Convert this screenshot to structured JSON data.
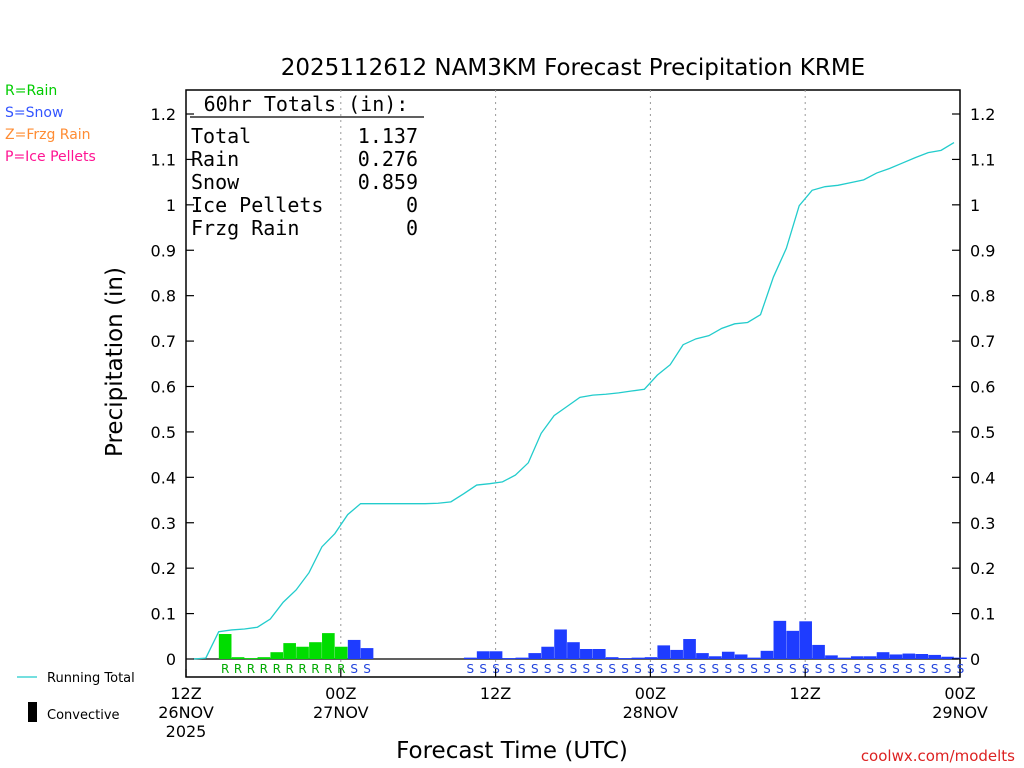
{
  "chart_data": {
    "type": "bar",
    "title": "2025112612 NAM3KM Forecast Precipitation KRME",
    "ylabel": "Precipitation (in)",
    "xlabel": "Forecast Time (UTC)",
    "ylim": [
      -0.04,
      1.24
    ],
    "yticks": [
      "0",
      "0.1",
      "0.2",
      "0.3",
      "0.4",
      "0.5",
      "0.6",
      "0.7",
      "0.8",
      "0.9",
      "1",
      "1.1",
      "1.2"
    ],
    "ytick_values": [
      0,
      0.1,
      0.2,
      0.3,
      0.4,
      0.5,
      0.6,
      0.7,
      0.8,
      0.9,
      1.0,
      1.1,
      1.2
    ],
    "x_ticks": [
      {
        "hour": 0,
        "lines": [
          "12Z",
          "26NOV",
          "2025"
        ]
      },
      {
        "hour": 12,
        "lines": [
          "00Z",
          "27NOV"
        ]
      },
      {
        "hour": 24,
        "lines": [
          "12Z"
        ]
      },
      {
        "hour": 36,
        "lines": [
          "00Z",
          "28NOV"
        ]
      },
      {
        "hour": 48,
        "lines": [
          "12Z"
        ]
      },
      {
        "hour": 60,
        "lines": [
          "00Z",
          "29NOV"
        ]
      }
    ],
    "hour_range": [
      0,
      60
    ],
    "precip_type_legend": [
      {
        "label": "R=Rain",
        "color": "#00cc00"
      },
      {
        "label": "S=Snow",
        "color": "#3355ff"
      },
      {
        "label": "Z=Frzg Rain",
        "color": "#ff8c33"
      },
      {
        "label": "P=Ice Pellets",
        "color": "#ff1493"
      }
    ],
    "totals_box": {
      "header": "60hr Totals (in):",
      "rows": [
        {
          "label": "Total",
          "value": "1.137"
        },
        {
          "label": "Rain",
          "value": "0.276"
        },
        {
          "label": "Snow",
          "value": "0.859"
        },
        {
          "label": "Ice Pellets",
          "value": "0"
        },
        {
          "label": "Frzg Rain",
          "value": "0"
        }
      ]
    },
    "running_total_label": "Running Total",
    "convective_label": "Convective",
    "credit": "coolwx.com/modelts",
    "bar_colors": {
      "R": "#00dd00",
      "S": "#1e3cff",
      "Z": "#ff8c33",
      "P": "#ff1493"
    },
    "label_colors": {
      "R": "#00aa00",
      "S": "#2244dd"
    },
    "line_color": "#22cccc",
    "bars": [
      {
        "hour": 0,
        "value": 0.0,
        "type": ""
      },
      {
        "hour": 1,
        "value": 0.0,
        "type": ""
      },
      {
        "hour": 2,
        "value": 0.002,
        "type": ""
      },
      {
        "hour": 3,
        "value": 0.055,
        "type": "R"
      },
      {
        "hour": 4,
        "value": 0.004,
        "type": "R"
      },
      {
        "hour": 5,
        "value": 0.002,
        "type": "R"
      },
      {
        "hour": 6,
        "value": 0.004,
        "type": "R"
      },
      {
        "hour": 7,
        "value": 0.015,
        "type": "R"
      },
      {
        "hour": 8,
        "value": 0.035,
        "type": "R"
      },
      {
        "hour": 9,
        "value": 0.027,
        "type": "R"
      },
      {
        "hour": 10,
        "value": 0.037,
        "type": "R"
      },
      {
        "hour": 11,
        "value": 0.057,
        "type": "R"
      },
      {
        "hour": 12,
        "value": 0.027,
        "type": "R"
      },
      {
        "hour": 13,
        "value": 0.042,
        "type": "S"
      },
      {
        "hour": 14,
        "value": 0.024,
        "type": "S"
      },
      {
        "hour": 15,
        "value": 0.0,
        "type": ""
      },
      {
        "hour": 16,
        "value": 0.0,
        "type": ""
      },
      {
        "hour": 17,
        "value": 0.0,
        "type": ""
      },
      {
        "hour": 18,
        "value": 0.0,
        "type": ""
      },
      {
        "hour": 19,
        "value": 0.0,
        "type": ""
      },
      {
        "hour": 20,
        "value": 0.0,
        "type": ""
      },
      {
        "hour": 21,
        "value": 0.0,
        "type": ""
      },
      {
        "hour": 22,
        "value": 0.003,
        "type": "S"
      },
      {
        "hour": 23,
        "value": 0.017,
        "type": "S"
      },
      {
        "hour": 24,
        "value": 0.017,
        "type": "S"
      },
      {
        "hour": 25,
        "value": 0.002,
        "type": "S"
      },
      {
        "hour": 26,
        "value": 0.003,
        "type": "S"
      },
      {
        "hour": 27,
        "value": 0.013,
        "type": "S"
      },
      {
        "hour": 28,
        "value": 0.027,
        "type": "S"
      },
      {
        "hour": 29,
        "value": 0.065,
        "type": "S"
      },
      {
        "hour": 30,
        "value": 0.037,
        "type": "S"
      },
      {
        "hour": 31,
        "value": 0.022,
        "type": "S"
      },
      {
        "hour": 32,
        "value": 0.022,
        "type": "S"
      },
      {
        "hour": 33,
        "value": 0.004,
        "type": "S"
      },
      {
        "hour": 34,
        "value": 0.002,
        "type": "S"
      },
      {
        "hour": 35,
        "value": 0.003,
        "type": "S"
      },
      {
        "hour": 36,
        "value": 0.004,
        "type": "S"
      },
      {
        "hour": 37,
        "value": 0.03,
        "type": "S"
      },
      {
        "hour": 38,
        "value": 0.02,
        "type": "S"
      },
      {
        "hour": 39,
        "value": 0.044,
        "type": "S"
      },
      {
        "hour": 40,
        "value": 0.013,
        "type": "S"
      },
      {
        "hour": 41,
        "value": 0.006,
        "type": "S"
      },
      {
        "hour": 42,
        "value": 0.016,
        "type": "S"
      },
      {
        "hour": 43,
        "value": 0.01,
        "type": "S"
      },
      {
        "hour": 44,
        "value": 0.003,
        "type": "S"
      },
      {
        "hour": 45,
        "value": 0.018,
        "type": "S"
      },
      {
        "hour": 46,
        "value": 0.084,
        "type": "S"
      },
      {
        "hour": 47,
        "value": 0.062,
        "type": "S"
      },
      {
        "hour": 48,
        "value": 0.083,
        "type": "S"
      },
      {
        "hour": 49,
        "value": 0.031,
        "type": "S"
      },
      {
        "hour": 50,
        "value": 0.008,
        "type": "S"
      },
      {
        "hour": 51,
        "value": 0.003,
        "type": "S"
      },
      {
        "hour": 52,
        "value": 0.006,
        "type": "S"
      },
      {
        "hour": 53,
        "value": 0.006,
        "type": "S"
      },
      {
        "hour": 54,
        "value": 0.015,
        "type": "S"
      },
      {
        "hour": 55,
        "value": 0.01,
        "type": "S"
      },
      {
        "hour": 56,
        "value": 0.012,
        "type": "S"
      },
      {
        "hour": 57,
        "value": 0.011,
        "type": "S"
      },
      {
        "hour": 58,
        "value": 0.009,
        "type": "S"
      },
      {
        "hour": 59,
        "value": 0.005,
        "type": "S"
      },
      {
        "hour": 60,
        "value": 0.003,
        "type": "S"
      }
    ],
    "running_total": [
      [
        1,
        0.0
      ],
      [
        2,
        0.002
      ],
      [
        3,
        0.06
      ],
      [
        4,
        0.064
      ],
      [
        5,
        0.066
      ],
      [
        6,
        0.07
      ],
      [
        7,
        0.088
      ],
      [
        8,
        0.125
      ],
      [
        9,
        0.152
      ],
      [
        10,
        0.19
      ],
      [
        11,
        0.247
      ],
      [
        12,
        0.276
      ],
      [
        13,
        0.318
      ],
      [
        14,
        0.342
      ],
      [
        15,
        0.342
      ],
      [
        16,
        0.342
      ],
      [
        17,
        0.342
      ],
      [
        18,
        0.342
      ],
      [
        19,
        0.342
      ],
      [
        20,
        0.343
      ],
      [
        21,
        0.346
      ],
      [
        22,
        0.364
      ],
      [
        23,
        0.383
      ],
      [
        24,
        0.386
      ],
      [
        25,
        0.39
      ],
      [
        26,
        0.405
      ],
      [
        27,
        0.432
      ],
      [
        28,
        0.497
      ],
      [
        29,
        0.536
      ],
      [
        30,
        0.556
      ],
      [
        31,
        0.576
      ],
      [
        32,
        0.581
      ],
      [
        33,
        0.583
      ],
      [
        34,
        0.586
      ],
      [
        35,
        0.59
      ],
      [
        36,
        0.594
      ],
      [
        37,
        0.625
      ],
      [
        38,
        0.648
      ],
      [
        39,
        0.692
      ],
      [
        40,
        0.705
      ],
      [
        41,
        0.712
      ],
      [
        42,
        0.728
      ],
      [
        43,
        0.738
      ],
      [
        44,
        0.741
      ],
      [
        45,
        0.758
      ],
      [
        46,
        0.841
      ],
      [
        47,
        0.904
      ],
      [
        48,
        0.998
      ],
      [
        49,
        1.032
      ],
      [
        50,
        1.04
      ],
      [
        51,
        1.043
      ],
      [
        52,
        1.049
      ],
      [
        53,
        1.055
      ],
      [
        54,
        1.07
      ],
      [
        55,
        1.08
      ],
      [
        56,
        1.092
      ],
      [
        57,
        1.104
      ],
      [
        58,
        1.115
      ],
      [
        59,
        1.12
      ],
      [
        60,
        1.137
      ]
    ]
  }
}
